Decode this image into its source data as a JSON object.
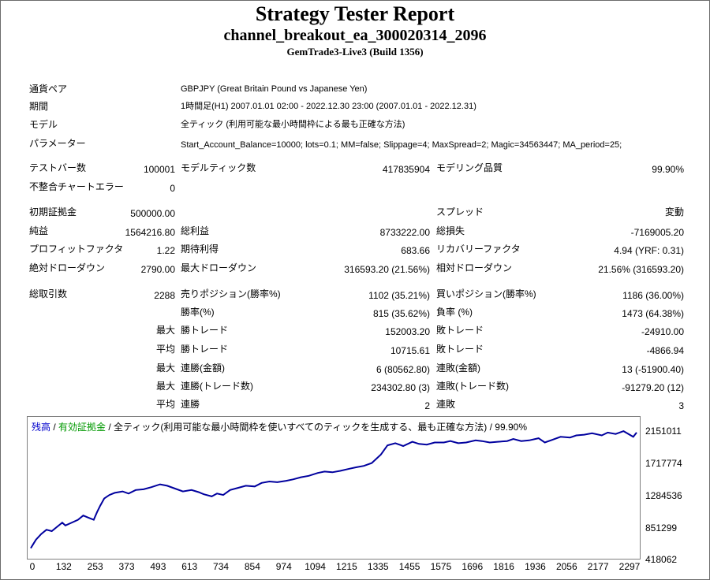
{
  "report": {
    "title": "Strategy Tester Report",
    "ea_name": "channel_breakout_ea_300020314_2096",
    "server": "GemTrade3-Live3 (Build 1356)"
  },
  "info": {
    "pair_label": "通貨ペア",
    "pair_value": "GBPJPY (Great Britain Pound vs Japanese Yen)",
    "period_label": "期間",
    "period_value": "1時間足(H1) 2007.01.01 02:00 - 2022.12.30 23:00 (2007.01.01 - 2022.12.31)",
    "model_label": "モデル",
    "model_value": "全ティック (利用可能な最小時間枠による最も正確な方法)",
    "params_label": "パラメーター",
    "params_value": "Start_Account_Balance=10000; lots=0.1; MM=false; Slippage=4; MaxSpread=2; Magic=34563447; MA_period=25;"
  },
  "stats": {
    "bars_label": "テストバー数",
    "bars_value": "100001",
    "ticks_label": "モデルティック数",
    "ticks_value": "417835904",
    "quality_label": "モデリング品質",
    "quality_value": "99.90%",
    "errors_label": "不整合チャートエラー",
    "errors_value": "0",
    "deposit_label": "初期証拠金",
    "deposit_value": "500000.00",
    "spread_label": "スプレッド",
    "spread_value": "変動",
    "net_label": "純益",
    "net_value": "1564216.80",
    "gross_profit_label": "総利益",
    "gross_profit_value": "8733222.00",
    "gross_loss_label": "総損失",
    "gross_loss_value": "-7169005.20",
    "pf_label": "プロフィットファクタ",
    "pf_value": "1.22",
    "expected_label": "期待利得",
    "expected_value": "683.66",
    "recovery_label": "リカバリーファクタ",
    "recovery_value": "4.94 (YRF: 0.31)",
    "abs_dd_label": "絶対ドローダウン",
    "abs_dd_value": "2790.00",
    "max_dd_label": "最大ドローダウン",
    "max_dd_value": "316593.20 (21.56%)",
    "rel_dd_label": "相対ドローダウン",
    "rel_dd_value": "21.56% (316593.20)",
    "trades_label": "総取引数",
    "trades_value": "2288",
    "short_label": "売りポジション(勝率%)",
    "short_value": "1102 (35.21%)",
    "long_label": "買いポジション(勝率%)",
    "long_value": "1186 (36.00%)",
    "win_pct_label": "勝率(%)",
    "win_pct_value": "815 (35.62%)",
    "loss_pct_label": "負率 (%)",
    "loss_pct_value": "1473 (64.38%)",
    "max_label": "最大",
    "avg_label": "平均",
    "win_trade_label": "勝トレード",
    "loss_trade_label": "敗トレード",
    "max_win_value": "152003.20",
    "max_loss_value": "-24910.00",
    "avg_win_value": "10715.61",
    "avg_loss_value": "-4866.94",
    "cons_win_amt_label": "連勝(金額)",
    "cons_win_amt_value": "6 (80562.80)",
    "cons_loss_amt_label": "連敗(金額)",
    "cons_loss_amt_value": "13 (-51900.40)",
    "cons_win_cnt_label": "連勝(トレード数)",
    "cons_win_cnt_value": "234302.80 (3)",
    "cons_loss_cnt_label": "連敗(トレード数)",
    "cons_loss_cnt_value": "-91279.20 (12)",
    "avg_cons_win_label": "連勝",
    "avg_cons_win_value": "2",
    "avg_cons_loss_label": "連敗",
    "avg_cons_loss_value": "3"
  },
  "legend": {
    "balance": "残高",
    "sep1": " / ",
    "equity": "有効証拠金",
    "rest": " / 全ティック(利用可能な最小時間枠を使いすべてのティックを生成する、最も正確な方法) / 99.90%"
  },
  "colors": {
    "line": "#00009e",
    "balance_text": "#0000cc",
    "equity_text": "#009900"
  },
  "chart_data": {
    "type": "line",
    "title": "",
    "y_ticks": [
      "2151011",
      "1717774",
      "1284536",
      "851299",
      "418062"
    ],
    "x_ticks": [
      "0",
      "132",
      "253",
      "373",
      "493",
      "613",
      "734",
      "854",
      "974",
      "1094",
      "1215",
      "1335",
      "1455",
      "1575",
      "1696",
      "1816",
      "1936",
      "2056",
      "2177",
      "2297"
    ],
    "ylim": [
      418062,
      2151011
    ],
    "xlim": [
      0,
      2310
    ],
    "series": [
      {
        "x": [
          0,
          10,
          20,
          40,
          60,
          80,
          100,
          120,
          132,
          150,
          180,
          200,
          220,
          240,
          253,
          265,
          280,
          300,
          320,
          350,
          373,
          400,
          430,
          460,
          493,
          520,
          550,
          580,
          613,
          640,
          660,
          690,
          710,
          734,
          760,
          790,
          820,
          854,
          880,
          910,
          940,
          974,
          1000,
          1030,
          1060,
          1094,
          1120,
          1150,
          1180,
          1215,
          1240,
          1270,
          1300,
          1335,
          1360,
          1390,
          1420,
          1455,
          1480,
          1510,
          1540,
          1575,
          1600,
          1630,
          1660,
          1696,
          1720,
          1750,
          1780,
          1816,
          1840,
          1870,
          1900,
          1936,
          1960,
          1990,
          2020,
          2056,
          2080,
          2110,
          2140,
          2177,
          2200,
          2230,
          2260,
          2297,
          2310
        ],
        "y": [
          500000,
          560000,
          620000,
          700000,
          760000,
          740000,
          800000,
          860000,
          820000,
          850000,
          900000,
          960000,
          930000,
          900000,
          1010000,
          1100000,
          1200000,
          1250000,
          1280000,
          1300000,
          1270000,
          1320000,
          1330000,
          1360000,
          1400000,
          1380000,
          1340000,
          1300000,
          1320000,
          1290000,
          1260000,
          1230000,
          1270000,
          1250000,
          1320000,
          1350000,
          1380000,
          1370000,
          1420000,
          1440000,
          1430000,
          1450000,
          1470000,
          1500000,
          1520000,
          1560000,
          1580000,
          1570000,
          1590000,
          1620000,
          1640000,
          1660000,
          1700000,
          1820000,
          1950000,
          1980000,
          1940000,
          2000000,
          1970000,
          1960000,
          1990000,
          1990000,
          2010000,
          1980000,
          1990000,
          2020000,
          2010000,
          1990000,
          2000000,
          2010000,
          2040000,
          2010000,
          2020000,
          2050000,
          1990000,
          2030000,
          2070000,
          2060000,
          2090000,
          2100000,
          2120000,
          2090000,
          2130000,
          2110000,
          2150000,
          2070000,
          2130000
        ]
      }
    ]
  }
}
